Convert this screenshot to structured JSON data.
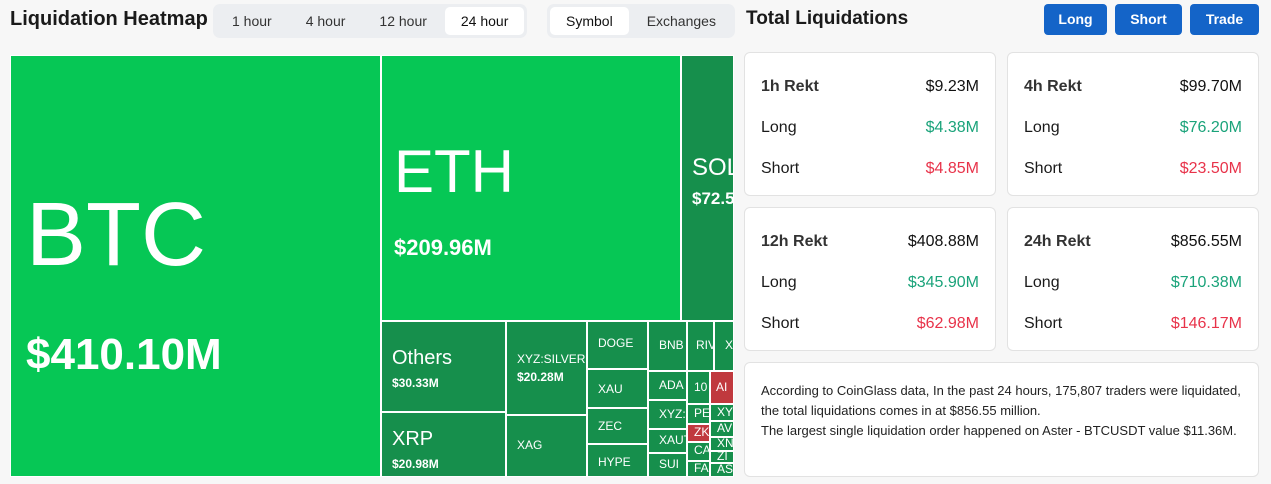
{
  "header": {
    "title": "Liquidation Heatmap",
    "time_tabs": [
      "1 hour",
      "4 hour",
      "12 hour",
      "24 hour"
    ],
    "active_time": "24 hour",
    "view_tabs": [
      "Symbol",
      "Exchanges"
    ],
    "active_view": "Symbol"
  },
  "colors": {
    "long_green": "#06c755",
    "dark_green": "#168f4c",
    "red": "#c0393e"
  },
  "heatmap": [
    {
      "sym": "BTC",
      "val": "$410.10M"
    },
    {
      "sym": "ETH",
      "val": "$209.96M"
    },
    {
      "sym": "SOL",
      "val": "$72.5"
    },
    {
      "sym": "Others",
      "val": "$30.33M"
    },
    {
      "sym": "XRP",
      "val": "$20.98M"
    },
    {
      "sym": "XYZ:SILVER",
      "val": "$20.28M"
    },
    {
      "sym": "XAG"
    },
    {
      "sym": "DOGE"
    },
    {
      "sym": "XAU"
    },
    {
      "sym": "ZEC"
    },
    {
      "sym": "HYPE"
    },
    {
      "sym": "BNB"
    },
    {
      "sym": "ADA"
    },
    {
      "sym": "XYZ:"
    },
    {
      "sym": "XAUT"
    },
    {
      "sym": "SUI"
    },
    {
      "sym": "RIV"
    },
    {
      "sym": "XT"
    },
    {
      "sym": "10"
    },
    {
      "sym": "AI"
    },
    {
      "sym": "PE"
    },
    {
      "sym": "ZK"
    },
    {
      "sym": "CA"
    },
    {
      "sym": "FA"
    },
    {
      "sym": "XY"
    },
    {
      "sym": "AV"
    },
    {
      "sym": "XN"
    },
    {
      "sym": "ZI"
    },
    {
      "sym": "AS"
    }
  ],
  "right": {
    "title": "Total Liquidations",
    "buttons": [
      "Long",
      "Short",
      "Trade"
    ],
    "cards": [
      {
        "label": "1h Rekt",
        "total": "$9.23M",
        "long_label": "Long",
        "long": "$4.38M",
        "short_label": "Short",
        "short": "$4.85M"
      },
      {
        "label": "4h Rekt",
        "total": "$99.70M",
        "long_label": "Long",
        "long": "$76.20M",
        "short_label": "Short",
        "short": "$23.50M"
      },
      {
        "label": "12h Rekt",
        "total": "$408.88M",
        "long_label": "Long",
        "long": "$345.90M",
        "short_label": "Short",
        "short": "$62.98M"
      },
      {
        "label": "24h Rekt",
        "total": "$856.55M",
        "long_label": "Long",
        "long": "$710.38M",
        "short_label": "Short",
        "short": "$146.17M"
      }
    ],
    "info": [
      "According to CoinGlass data, In the past 24 hours, 175,807 traders were liquidated, the total liquidations comes in at $856.55 million.",
      "The largest single liquidation order happened on Aster - BTCUSDT value $11.36M."
    ]
  }
}
